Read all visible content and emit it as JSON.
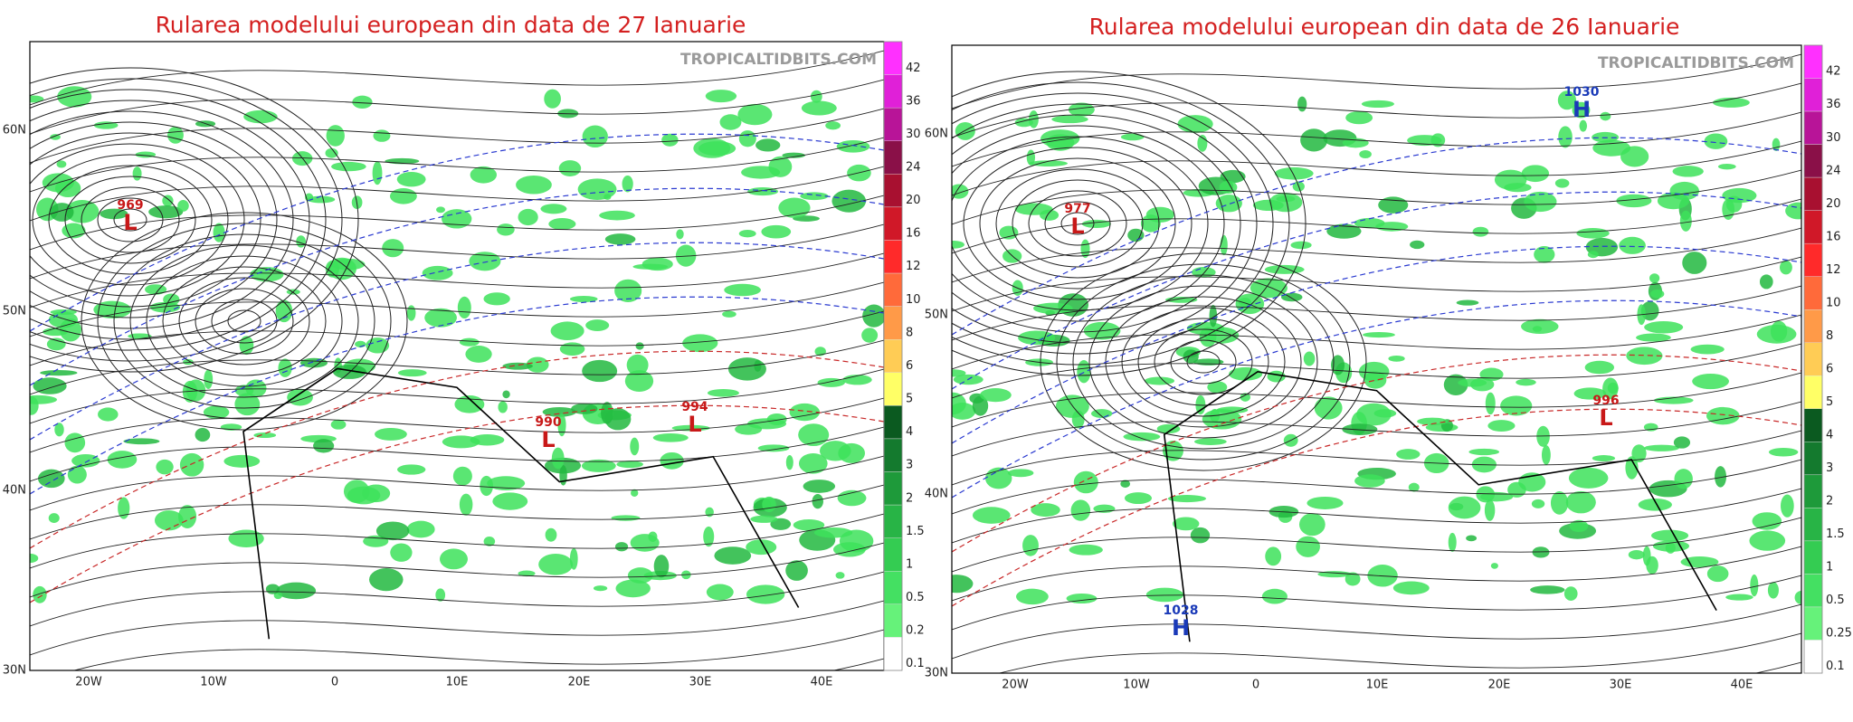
{
  "panels": [
    {
      "title": "Rularea modelului european din data de 27 Ianuarie",
      "watermark": "TROPICALTIDBITS.COM",
      "lat_labels": [
        "60N",
        "50N",
        "40N",
        "30N"
      ],
      "lon_labels": [
        "20W",
        "10W",
        "0",
        "10E",
        "20E",
        "30E",
        "40E"
      ],
      "centers": [
        {
          "pressure": "969",
          "letter": "L"
        },
        {
          "pressure": "990",
          "letter": "L"
        },
        {
          "pressure": "994",
          "letter": "L"
        }
      ],
      "colorbar": {
        "labels": [
          "42",
          "36",
          "30",
          "24",
          "20",
          "16",
          "12",
          "10",
          "8",
          "6",
          "5",
          "4",
          "3",
          "2",
          "1.5",
          "1",
          "0.5",
          "0.2",
          "0.1"
        ],
        "colors": [
          "#ff30ff",
          "#e020d8",
          "#b81498",
          "#8a1048",
          "#a81030",
          "#d01828",
          "#ff2a2a",
          "#ff6a3a",
          "#ff9a48",
          "#ffcc55",
          "#ffff66",
          "#0b5a20",
          "#147a2e",
          "#1e9a3a",
          "#28b446",
          "#34cc52",
          "#44e062",
          "#66f27a",
          "#ffffff"
        ]
      }
    },
    {
      "title": "Rularea modelului european din data de 26 Ianuarie",
      "watermark": "TROPICALTIDBITS.COM",
      "lat_labels": [
        "60N",
        "50N",
        "40N",
        "30N"
      ],
      "lon_labels": [
        "20W",
        "10W",
        "0",
        "10E",
        "20E",
        "30E",
        "40E"
      ],
      "centers": [
        {
          "pressure": "977",
          "letter": "L"
        },
        {
          "pressure": "996",
          "letter": "L"
        },
        {
          "pressure": "1030",
          "letter": "H"
        },
        {
          "pressure": "1028",
          "letter": "H"
        }
      ],
      "colorbar": {
        "labels": [
          "42",
          "36",
          "30",
          "24",
          "20",
          "16",
          "12",
          "10",
          "8",
          "6",
          "5",
          "4",
          "3",
          "2",
          "1.5",
          "1",
          "0.5",
          "0.25",
          "0.1"
        ],
        "colors": [
          "#ff30ff",
          "#e020d8",
          "#b81498",
          "#8a1048",
          "#a81030",
          "#d01828",
          "#ff2a2a",
          "#ff6a3a",
          "#ff9a48",
          "#ffcc55",
          "#ffff66",
          "#0b5a20",
          "#147a2e",
          "#1e9a3a",
          "#28b446",
          "#34cc52",
          "#44e062",
          "#66f27a",
          "#ffffff"
        ]
      }
    }
  ]
}
